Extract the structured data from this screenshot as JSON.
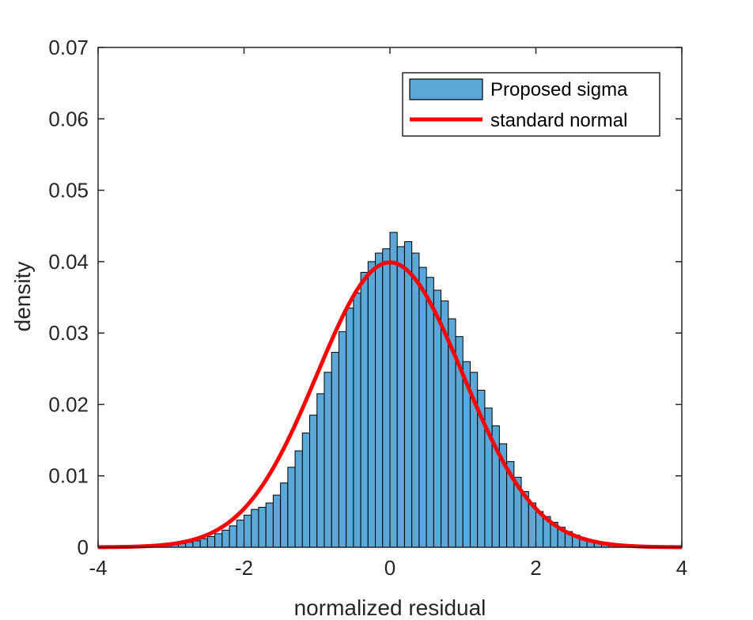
{
  "chart_data": {
    "type": "bar",
    "xlabel": "normalized residual",
    "ylabel": "density",
    "xlim": [
      -4,
      4
    ],
    "ylim": [
      0,
      0.07
    ],
    "xticks": [
      "-4",
      "-2",
      "0",
      "2",
      "4"
    ],
    "yticks": [
      "0",
      "0.01",
      "0.02",
      "0.03",
      "0.04",
      "0.05",
      "0.06",
      "0.07"
    ],
    "grid": false,
    "legend_position": "top-right",
    "bin_width": 0.1,
    "histogram": {
      "name": "Proposed sigma",
      "color": "#5ba8d8",
      "edge_color": "#000000",
      "bin_centers": [
        -3.15,
        -3.05,
        -2.95,
        -2.85,
        -2.75,
        -2.65,
        -2.55,
        -2.45,
        -2.35,
        -2.25,
        -2.15,
        -2.05,
        -1.95,
        -1.85,
        -1.75,
        -1.65,
        -1.55,
        -1.45,
        -1.35,
        -1.25,
        -1.15,
        -1.05,
        -0.95,
        -0.85,
        -0.75,
        -0.65,
        -0.55,
        -0.45,
        -0.35,
        -0.25,
        -0.15,
        -0.05,
        0.05,
        0.15,
        0.25,
        0.35,
        0.45,
        0.55,
        0.65,
        0.75,
        0.85,
        0.95,
        1.05,
        1.15,
        1.25,
        1.35,
        1.45,
        1.55,
        1.65,
        1.75,
        1.85,
        1.95,
        2.05,
        2.15,
        2.25,
        2.35,
        2.45,
        2.55,
        2.65,
        2.75,
        2.85,
        2.95,
        3.05,
        3.15
      ],
      "values": [
        0.0002,
        0.0003,
        0.0004,
        0.0005,
        0.0007,
        0.0009,
        0.0012,
        0.0015,
        0.0019,
        0.0024,
        0.003,
        0.0038,
        0.0045,
        0.0053,
        0.0056,
        0.0062,
        0.0073,
        0.009,
        0.0112,
        0.0135,
        0.016,
        0.0185,
        0.0215,
        0.0245,
        0.0273,
        0.0302,
        0.0335,
        0.0356,
        0.0385,
        0.04,
        0.0412,
        0.0418,
        0.0441,
        0.0421,
        0.0428,
        0.0412,
        0.0392,
        0.0378,
        0.036,
        0.0345,
        0.032,
        0.0295,
        0.026,
        0.0245,
        0.022,
        0.0195,
        0.017,
        0.0145,
        0.012,
        0.0098,
        0.0078,
        0.0062,
        0.005,
        0.0043,
        0.0035,
        0.0028,
        0.0022,
        0.0017,
        0.0013,
        0.0009,
        0.0006,
        0.0004,
        0.0003,
        0.0002
      ]
    },
    "curve": {
      "name": "standard normal",
      "color": "#ff0000",
      "function": "0.1 * exp(-x^2/2) / sqrt(2*pi)",
      "x_range": [
        -4,
        4
      ]
    }
  }
}
